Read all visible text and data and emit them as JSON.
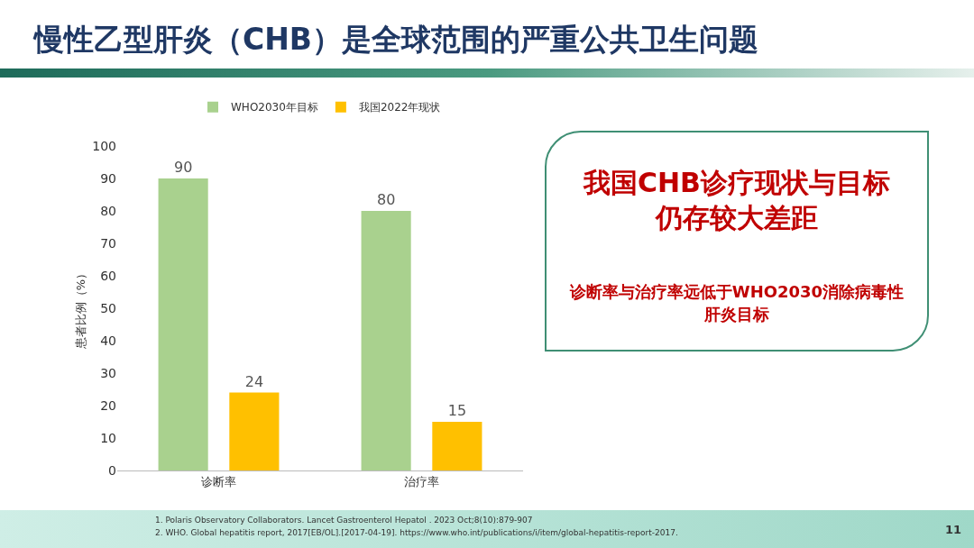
{
  "chart_data": {
    "type": "bar",
    "title": "慢性乙型肝炎（CHB）是全球范围的严重公共卫生问题",
    "ylabel": "患者比例（%）",
    "categories": [
      "诊断率",
      "治疗率"
    ],
    "series": [
      {
        "name": "WHO2030年目标",
        "color": "#a9d18e",
        "values": [
          90,
          80
        ]
      },
      {
        "name": "我国2022年现状",
        "color": "#ffc000",
        "values": [
          24,
          15
        ]
      }
    ],
    "ylim": [
      0,
      100
    ],
    "yticks": [
      0,
      10,
      20,
      30,
      40,
      50,
      60,
      70,
      80,
      90,
      100
    ],
    "grid": false,
    "legend": "top",
    "data_labels": true,
    "annotations": [
      "我国CHB诊疗现状与目标仍存较大差距",
      "诊断率与治疗率远低于WHO2030消除病毒性肝炎目标",
      "1. Polaris Observatory Collaborators. Lancet Gastroenterol Hepatol . 2023 Oct;8(10):879-907",
      "2. WHO. Global hepatitis report, 2017[EB/OL].[2017-04-19]. https://www.who.int/publications/i/item/global-hepatitis-report-2017.",
      "11"
    ]
  }
}
